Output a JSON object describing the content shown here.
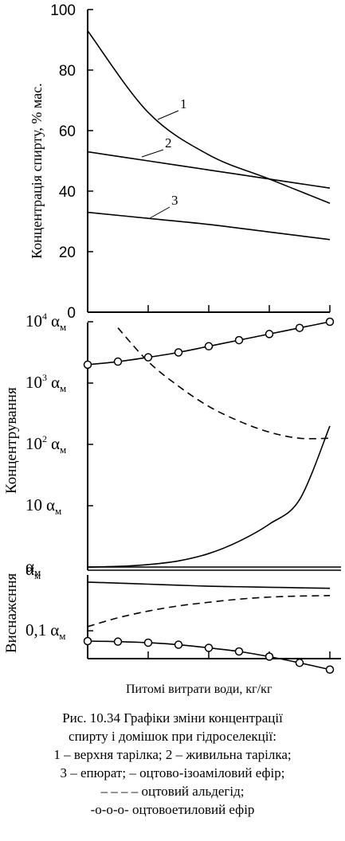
{
  "chart_data": [
    {
      "type": "line",
      "ylabel": "Концентрація спирту, % мас.",
      "ylim": [
        0,
        100
      ],
      "yticks": [
        "0",
        "20",
        "40",
        "60",
        "80",
        "100"
      ],
      "x": [
        0,
        1,
        2,
        3,
        4
      ],
      "series": [
        {
          "name": "1",
          "values": [
            93,
            66,
            52,
            44,
            36
          ]
        },
        {
          "name": "2",
          "values": [
            53,
            50,
            47,
            44,
            41
          ]
        },
        {
          "name": "3",
          "values": [
            33,
            31,
            29,
            26.5,
            24
          ]
        }
      ]
    },
    {
      "type": "line",
      "ylabel": "Концентрування",
      "scale": "log",
      "yticks": [
        {
          "base": "10",
          "sup": "4",
          "sub": "м"
        },
        {
          "base": "10",
          "sup": "3",
          "sub": "м"
        },
        {
          "base": "10",
          "sup": "2",
          "sub": "м"
        },
        {
          "base": "10",
          "sup": "",
          "sub": "м"
        },
        {
          "base": "",
          "sup": "",
          "sub": "м"
        }
      ],
      "x": [
        0,
        0.5,
        1,
        1.5,
        2,
        2.5,
        3,
        3.5,
        4
      ],
      "series": [
        {
          "style": "solid",
          "log_values": [
            0,
            0.01,
            0.04,
            0.1,
            0.22,
            0.42,
            0.7,
            1.1,
            2.3
          ]
        },
        {
          "style": "dashed",
          "log_values": [
            null,
            3.9,
            3.35,
            2.95,
            2.62,
            2.38,
            2.2,
            2.1,
            2.1
          ]
        },
        {
          "style": "circles",
          "log_values": [
            3.3,
            3.35,
            3.42,
            3.5,
            3.6,
            3.7,
            3.8,
            3.9,
            4.0
          ]
        }
      ]
    },
    {
      "type": "line",
      "ylabel": "Виснажєння",
      "scale": "log",
      "yticks": [
        {
          "base": "",
          "sup": "",
          "sub": "м"
        },
        {
          "base": "0,1",
          "sup": "",
          "sub": "м"
        }
      ],
      "x": [
        0,
        0.5,
        1,
        1.5,
        2,
        2.5,
        3,
        3.5,
        4
      ],
      "series": [
        {
          "style": "solid",
          "log_values": [
            -0.06,
            -0.08,
            -0.1,
            -0.12,
            -0.14,
            -0.15,
            -0.16,
            -0.17,
            -0.18
          ]
        },
        {
          "style": "dashed",
          "log_values": [
            -0.92,
            -0.75,
            -0.62,
            -0.52,
            -0.45,
            -0.39,
            -0.35,
            -0.33,
            -0.32
          ]
        },
        {
          "style": "circles",
          "log_values": [
            -1.2,
            -1.21,
            -1.23,
            -1.27,
            -1.33,
            -1.4,
            -1.5,
            -1.62,
            -1.75
          ]
        }
      ]
    }
  ],
  "labels": {
    "xlabel": "Питомі витрати води, кг/кг",
    "alpha": "α"
  },
  "caption": {
    "line1": "Рис. 10.34 Графіки зміни концентрації",
    "line2": "спирту і домішок при гідроселекції:",
    "line3": "1 – верхня тарілка; 2 – живильна тарілка;",
    "line4": "3 – епюрат; – оцтово-ізоаміловий ефір;",
    "line5": "– – – – оцтовий альдегід;",
    "line6": "-о-о-о- оцтовоетиловий ефір"
  }
}
